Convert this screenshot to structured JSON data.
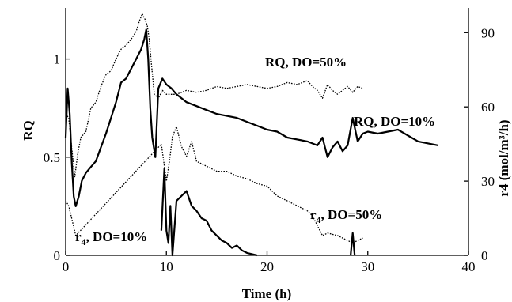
{
  "chart_data": {
    "type": "line",
    "title": "",
    "xlabel": "Time (h)",
    "ylabel_left": "RQ",
    "ylabel_right": "r4 (mol/m³/h)",
    "xlim": [
      0,
      40
    ],
    "ylim_left": [
      0,
      1.26
    ],
    "ylim_right": [
      0,
      100
    ],
    "x_ticks": [
      "0",
      "10",
      "20",
      "30",
      "40"
    ],
    "y_ticks_left": [
      {
        "value": 0,
        "label": "0"
      },
      {
        "value": 0.5,
        "label": "0.5"
      },
      {
        "value": 1,
        "label": "1"
      }
    ],
    "y_ticks_right": [
      "0",
      "30",
      "60",
      "90"
    ],
    "grid": false,
    "annotations": [
      {
        "id": "rq50",
        "main": "RQ, DO=50%"
      },
      {
        "id": "rq10",
        "main": "RQ, DO=10%"
      },
      {
        "id": "r450",
        "main": "r",
        "sub": "4",
        "rest": ", DO=50%"
      },
      {
        "id": "r410",
        "main": "r",
        "sub": "4",
        "rest": ", DO=10%"
      }
    ],
    "series": [
      {
        "axis": "left",
        "style": "dotted",
        "x": [
          0,
          0.3,
          0.6,
          0.9,
          1.2,
          1.5,
          2,
          2.5,
          3,
          3.5,
          4,
          4.5,
          5,
          5.5,
          6,
          6.5,
          7,
          7.3,
          7.6,
          7.9,
          8.1,
          8.3,
          8.5,
          8.8,
          9.2,
          9.6,
          10,
          11,
          12,
          13,
          14,
          15,
          16,
          17,
          18,
          19,
          20,
          21,
          22,
          23,
          24,
          24.5,
          25,
          25.5,
          26,
          26.5,
          27,
          27.5,
          28,
          28.5,
          29,
          29.5
        ],
        "y": [
          0.72,
          0.7,
          0.55,
          0.4,
          0.52,
          0.6,
          0.63,
          0.75,
          0.78,
          0.86,
          0.92,
          0.94,
          1.0,
          1.05,
          1.07,
          1.1,
          1.14,
          1.19,
          1.23,
          1.2,
          1.17,
          1.1,
          0.98,
          0.82,
          0.8,
          0.84,
          0.82,
          0.82,
          0.84,
          0.83,
          0.84,
          0.86,
          0.85,
          0.86,
          0.87,
          0.86,
          0.85,
          0.86,
          0.88,
          0.87,
          0.89,
          0.86,
          0.84,
          0.8,
          0.87,
          0.84,
          0.82,
          0.84,
          0.86,
          0.83,
          0.86,
          0.85
        ]
      },
      {
        "axis": "left",
        "style": "solid",
        "x": [
          0,
          0.2,
          0.4,
          0.6,
          0.8,
          1.0,
          1.3,
          1.6,
          2,
          2.5,
          3,
          3.5,
          4,
          4.5,
          5,
          5.5,
          6,
          6.5,
          7,
          7.5,
          7.8,
          8.0,
          8.2,
          8.4,
          8.6,
          8.9,
          9.2,
          9.6,
          10,
          10.5,
          11,
          12,
          13,
          14,
          15,
          16,
          17,
          18,
          19,
          20,
          21,
          22,
          23,
          24,
          25,
          25.5,
          26,
          26.5,
          27,
          27.5,
          28,
          28.5,
          29,
          29.5,
          30,
          31,
          32,
          33,
          34,
          35,
          36,
          37
        ],
        "y": [
          0.6,
          0.85,
          0.72,
          0.48,
          0.3,
          0.25,
          0.3,
          0.38,
          0.42,
          0.45,
          0.48,
          0.55,
          0.62,
          0.7,
          0.78,
          0.88,
          0.9,
          0.95,
          1.0,
          1.05,
          1.1,
          1.15,
          1.0,
          0.75,
          0.6,
          0.5,
          0.85,
          0.9,
          0.87,
          0.85,
          0.82,
          0.78,
          0.76,
          0.74,
          0.72,
          0.71,
          0.7,
          0.68,
          0.66,
          0.64,
          0.63,
          0.6,
          0.59,
          0.58,
          0.56,
          0.6,
          0.5,
          0.55,
          0.58,
          0.53,
          0.56,
          0.7,
          0.58,
          0.62,
          0.63,
          0.62,
          0.63,
          0.64,
          0.61,
          0.58,
          0.57,
          0.56
        ]
      },
      {
        "axis": "right",
        "style": "dotted",
        "x": [
          0,
          0.3,
          0.6,
          1.0,
          9.5,
          10,
          10.3,
          10.6,
          11,
          11.5,
          12,
          12.5,
          13,
          14,
          15,
          16,
          17,
          18,
          19,
          20,
          21,
          22,
          23,
          24,
          24.5,
          25,
          25.5,
          26,
          27,
          28,
          28.5,
          29,
          29.5
        ],
        "y": [
          22,
          20,
          15,
          8,
          45,
          30,
          38,
          48,
          52,
          44,
          40,
          46,
          38,
          36,
          34,
          34,
          32,
          31,
          29,
          28,
          24,
          22,
          20,
          18,
          16,
          12,
          8,
          9,
          8,
          6,
          5,
          6,
          7
        ]
      },
      {
        "axis": "right",
        "style": "solid",
        "x": [
          9.5,
          9.8,
          10,
          10.2,
          10.4,
          10.6,
          11,
          11.5,
          12,
          12.5,
          13,
          13.5,
          14,
          14.5,
          15,
          15.5,
          16,
          16.5,
          17,
          17.5,
          18,
          18.5,
          19
        ],
        "y": [
          10,
          35,
          10,
          5,
          20,
          0,
          22,
          24,
          26,
          20,
          18,
          15,
          14,
          10,
          8,
          6,
          5,
          3,
          4,
          2,
          1,
          0.5,
          0
        ]
      },
      {
        "axis": "right",
        "style": "solid",
        "x": [
          28.3,
          28.5,
          28.7
        ],
        "y": [
          0,
          9,
          0
        ]
      }
    ]
  }
}
